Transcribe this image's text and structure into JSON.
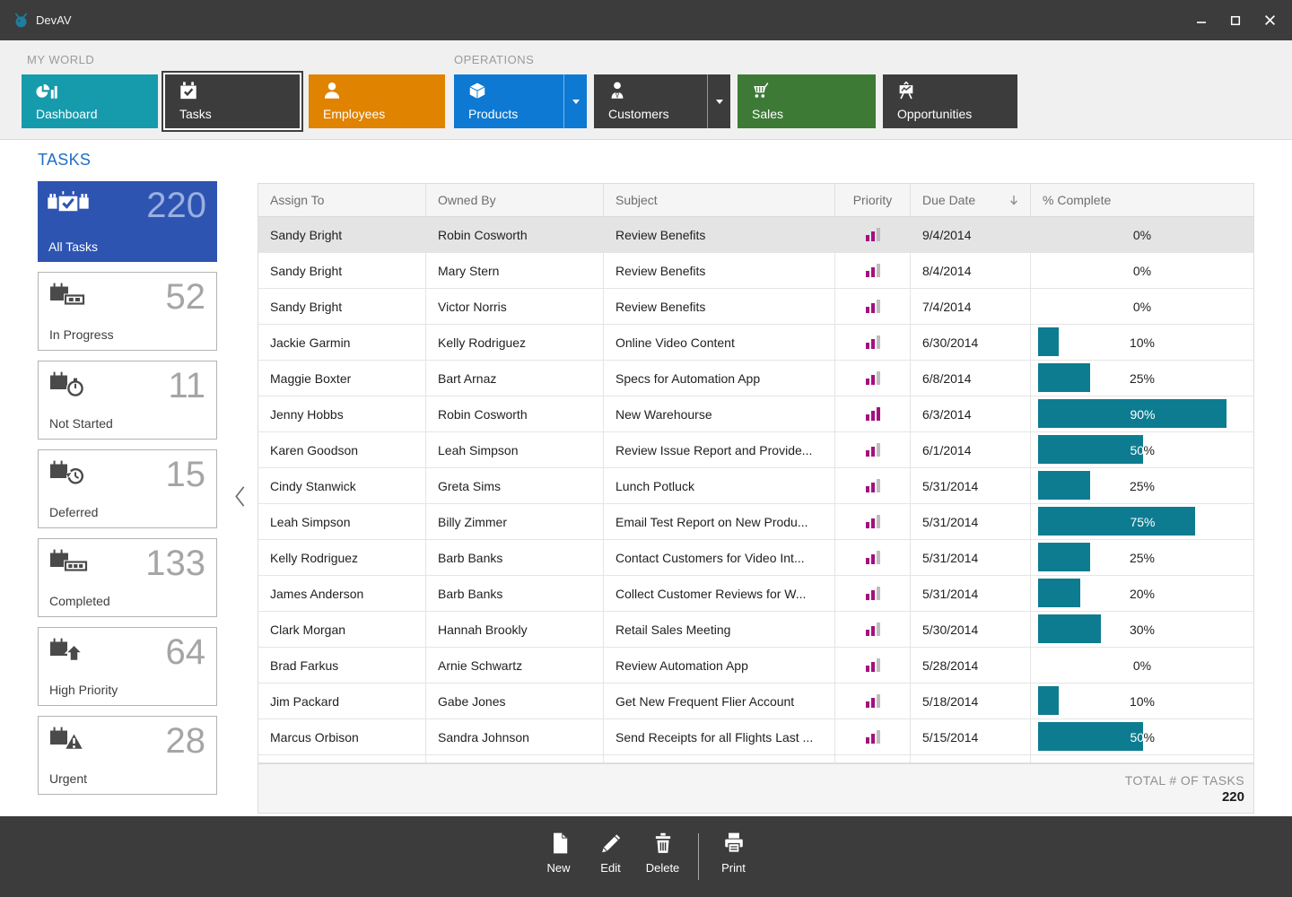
{
  "window": {
    "title": "DevAV"
  },
  "ribbon": {
    "groups": [
      {
        "label": "MY WORLD",
        "buttons": [
          {
            "label": "Dashboard",
            "icon": "dashboard",
            "color": "#169bad",
            "selected": false,
            "has_dropdown": false
          },
          {
            "label": "Tasks",
            "icon": "tasks",
            "color": "#3c3c3c",
            "selected": true,
            "has_dropdown": false
          },
          {
            "label": "Employees",
            "icon": "employees",
            "color": "#e08300",
            "selected": false,
            "has_dropdown": false
          }
        ]
      },
      {
        "label": "OPERATIONS",
        "buttons": [
          {
            "label": "Products",
            "icon": "products",
            "color": "#0d79d2",
            "selected": false,
            "has_dropdown": true
          },
          {
            "label": "Customers",
            "icon": "customers",
            "color": "#3c3c3c",
            "selected": false,
            "has_dropdown": true
          },
          {
            "label": "Sales",
            "icon": "sales",
            "color": "#3d7a36",
            "selected": false,
            "has_dropdown": false
          },
          {
            "label": "Opportunities",
            "icon": "opportunities",
            "color": "#3c3c3c",
            "selected": false,
            "has_dropdown": false
          }
        ]
      }
    ]
  },
  "sidebar": {
    "heading": "TASKS",
    "tiles": [
      {
        "label": "All Tasks",
        "count": "220",
        "icon": "all-tasks",
        "selected": true
      },
      {
        "label": "In Progress",
        "count": "52",
        "icon": "in-progress",
        "selected": false
      },
      {
        "label": "Not Started",
        "count": "11",
        "icon": "not-started",
        "selected": false
      },
      {
        "label": "Deferred",
        "count": "15",
        "icon": "deferred",
        "selected": false
      },
      {
        "label": "Completed",
        "count": "133",
        "icon": "completed",
        "selected": false
      },
      {
        "label": "High Priority",
        "count": "64",
        "icon": "high-priority",
        "selected": false
      },
      {
        "label": "Urgent",
        "count": "28",
        "icon": "urgent",
        "selected": false
      }
    ]
  },
  "table": {
    "columns": [
      "Assign To",
      "Owned By",
      "Subject",
      "Priority",
      "Due Date",
      "% Complete"
    ],
    "sort": {
      "column": "Due Date",
      "direction": "descending"
    },
    "rows": [
      {
        "assign_to": "Sandy Bright",
        "owned_by": "Robin Cosworth",
        "subject": "Review Benefits",
        "priority": "normal",
        "due_date": "9/4/2014",
        "percent_complete": 0,
        "selected": true
      },
      {
        "assign_to": "Sandy Bright",
        "owned_by": "Mary Stern",
        "subject": "Review Benefits",
        "priority": "normal",
        "due_date": "8/4/2014",
        "percent_complete": 0,
        "selected": false
      },
      {
        "assign_to": "Sandy Bright",
        "owned_by": "Victor Norris",
        "subject": "Review Benefits",
        "priority": "normal",
        "due_date": "7/4/2014",
        "percent_complete": 0,
        "selected": false
      },
      {
        "assign_to": "Jackie Garmin",
        "owned_by": "Kelly Rodriguez",
        "subject": "Online Video Content",
        "priority": "normal",
        "due_date": "6/30/2014",
        "percent_complete": 10,
        "selected": false
      },
      {
        "assign_to": "Maggie Boxter",
        "owned_by": "Bart Arnaz",
        "subject": "Specs for Automation App",
        "priority": "normal",
        "due_date": "6/8/2014",
        "percent_complete": 25,
        "selected": false
      },
      {
        "assign_to": "Jenny Hobbs",
        "owned_by": "Robin Cosworth",
        "subject": "New Warehourse",
        "priority": "high",
        "due_date": "6/3/2014",
        "percent_complete": 90,
        "selected": false
      },
      {
        "assign_to": "Karen Goodson",
        "owned_by": "Leah Simpson",
        "subject": "Review Issue Report and Provide...",
        "priority": "normal",
        "due_date": "6/1/2014",
        "percent_complete": 50,
        "selected": false
      },
      {
        "assign_to": "Cindy Stanwick",
        "owned_by": "Greta Sims",
        "subject": "Lunch Potluck",
        "priority": "normal",
        "due_date": "5/31/2014",
        "percent_complete": 25,
        "selected": false
      },
      {
        "assign_to": "Leah Simpson",
        "owned_by": "Billy Zimmer",
        "subject": "Email Test Report on New Produ...",
        "priority": "normal",
        "due_date": "5/31/2014",
        "percent_complete": 75,
        "selected": false
      },
      {
        "assign_to": "Kelly Rodriguez",
        "owned_by": "Barb Banks",
        "subject": "Contact Customers for Video Int...",
        "priority": "normal",
        "due_date": "5/31/2014",
        "percent_complete": 25,
        "selected": false
      },
      {
        "assign_to": "James Anderson",
        "owned_by": "Barb Banks",
        "subject": "Collect Customer Reviews for W...",
        "priority": "normal",
        "due_date": "5/31/2014",
        "percent_complete": 20,
        "selected": false
      },
      {
        "assign_to": "Clark Morgan",
        "owned_by": "Hannah Brookly",
        "subject": "Retail Sales Meeting",
        "priority": "normal",
        "due_date": "5/30/2014",
        "percent_complete": 30,
        "selected": false
      },
      {
        "assign_to": "Brad Farkus",
        "owned_by": "Arnie Schwartz",
        "subject": "Review Automation App",
        "priority": "normal",
        "due_date": "5/28/2014",
        "percent_complete": 0,
        "selected": false
      },
      {
        "assign_to": "Jim Packard",
        "owned_by": "Gabe Jones",
        "subject": "Get New Frequent Flier Account",
        "priority": "normal",
        "due_date": "5/18/2014",
        "percent_complete": 10,
        "selected": false
      },
      {
        "assign_to": "Marcus Orbison",
        "owned_by": "Sandra Johnson",
        "subject": "Send Receipts for all Flights Last ...",
        "priority": "normal",
        "due_date": "5/15/2014",
        "percent_complete": 50,
        "selected": false
      }
    ],
    "footer": {
      "label": "TOTAL # OF TASKS",
      "value": "220"
    }
  },
  "toolbar": {
    "groups": [
      [
        {
          "label": "New",
          "icon": "new"
        },
        {
          "label": "Edit",
          "icon": "edit"
        },
        {
          "label": "Delete",
          "icon": "delete"
        }
      ],
      [
        {
          "label": "Print",
          "icon": "print"
        }
      ]
    ]
  },
  "colors": {
    "accent_blue": "#2d54b1",
    "heading_blue": "#1e6fc5",
    "progress_teal": "#0d7c91",
    "priority_magenta": "#a3117f",
    "tile_teal": "#169bad",
    "tile_orange": "#e08300",
    "tile_azure": "#0d79d2",
    "tile_green": "#3d7a36",
    "tile_dark": "#3c3c3c",
    "titlebar": "#3c3c3c",
    "selected_row": "#e4e4e4"
  }
}
